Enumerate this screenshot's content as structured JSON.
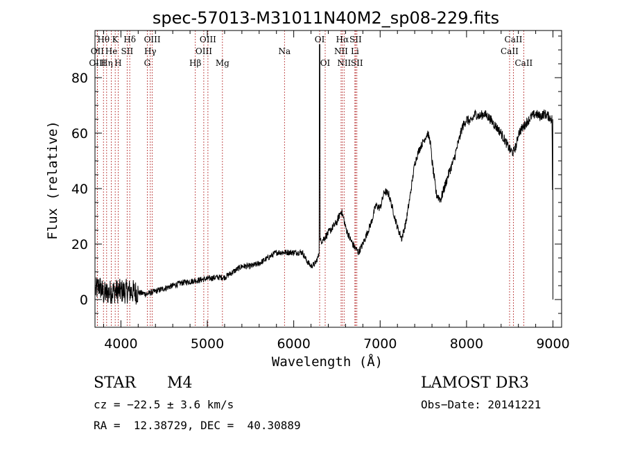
{
  "chart_data": {
    "type": "line",
    "title": "spec-57013-M31011N40M2_sp08-229.fits",
    "xlabel": "Wavelength (Å)",
    "ylabel": "Flux (relative)",
    "xlim": [
      3700,
      9100
    ],
    "ylim": [
      -10,
      97
    ],
    "xticks": [
      4000,
      5000,
      6000,
      7000,
      8000,
      9000
    ],
    "yticks": [
      0,
      20,
      40,
      60,
      80
    ],
    "spectrum_anchors": [
      [
        3700,
        3
      ],
      [
        3750,
        5
      ],
      [
        3800,
        2
      ],
      [
        3900,
        3
      ],
      [
        4000,
        3
      ],
      [
        4100,
        3
      ],
      [
        4200,
        2.5
      ],
      [
        4300,
        2
      ],
      [
        4400,
        3
      ],
      [
        4500,
        4
      ],
      [
        4600,
        5
      ],
      [
        4700,
        6
      ],
      [
        4800,
        6.5
      ],
      [
        4900,
        7
      ],
      [
        5000,
        7.5
      ],
      [
        5100,
        8
      ],
      [
        5200,
        8
      ],
      [
        5300,
        10
      ],
      [
        5400,
        12
      ],
      [
        5500,
        12
      ],
      [
        5600,
        13
      ],
      [
        5700,
        15
      ],
      [
        5800,
        17
      ],
      [
        5900,
        17
      ],
      [
        6000,
        17
      ],
      [
        6100,
        17
      ],
      [
        6150,
        14
      ],
      [
        6200,
        12
      ],
      [
        6250,
        13
      ],
      [
        6290,
        16
      ],
      [
        6300,
        20
      ],
      [
        6310,
        21
      ],
      [
        6350,
        22
      ],
      [
        6400,
        24
      ],
      [
        6450,
        26
      ],
      [
        6500,
        28
      ],
      [
        6550,
        32
      ],
      [
        6580,
        29
      ],
      [
        6600,
        26
      ],
      [
        6650,
        22
      ],
      [
        6700,
        19
      ],
      [
        6750,
        17
      ],
      [
        6800,
        20
      ],
      [
        6850,
        24
      ],
      [
        6900,
        28
      ],
      [
        6950,
        34
      ],
      [
        7000,
        33
      ],
      [
        7050,
        39
      ],
      [
        7100,
        38
      ],
      [
        7150,
        32
      ],
      [
        7200,
        26
      ],
      [
        7250,
        22
      ],
      [
        7300,
        28
      ],
      [
        7350,
        38
      ],
      [
        7400,
        49
      ],
      [
        7450,
        54
      ],
      [
        7500,
        57
      ],
      [
        7550,
        60
      ],
      [
        7580,
        57
      ],
      [
        7600,
        50
      ],
      [
        7650,
        38
      ],
      [
        7700,
        36
      ],
      [
        7750,
        41
      ],
      [
        7800,
        46
      ],
      [
        7850,
        50
      ],
      [
        7900,
        56
      ],
      [
        7950,
        62
      ],
      [
        8000,
        65
      ],
      [
        8050,
        64
      ],
      [
        8100,
        67
      ],
      [
        8150,
        66
      ],
      [
        8200,
        67
      ],
      [
        8250,
        66
      ],
      [
        8300,
        64
      ],
      [
        8350,
        62
      ],
      [
        8400,
        60
      ],
      [
        8450,
        57
      ],
      [
        8500,
        54
      ],
      [
        8540,
        53
      ],
      [
        8580,
        56
      ],
      [
        8600,
        60
      ],
      [
        8650,
        62
      ],
      [
        8700,
        64
      ],
      [
        8750,
        66
      ],
      [
        8800,
        67
      ],
      [
        8850,
        66
      ],
      [
        8900,
        67
      ],
      [
        8950,
        66
      ],
      [
        8990,
        65
      ],
      [
        9000,
        0
      ]
    ],
    "spectral_lines": [
      {
        "name": "Hθ",
        "wavelength": 3798,
        "row": 0
      },
      {
        "name": "OII",
        "wavelength": 3727,
        "row": 1
      },
      {
        "name": "OIII",
        "wavelength": 3727,
        "row": 2
      },
      {
        "name": "He",
        "wavelength": 3889,
        "row": 1
      },
      {
        "name": "Hη",
        "wavelength": 3835,
        "row": 2
      },
      {
        "name": "K",
        "wavelength": 3934,
        "row": 0
      },
      {
        "name": "H",
        "wavelength": 3968,
        "row": 2
      },
      {
        "name": "SII",
        "wavelength": 4072,
        "row": 1
      },
      {
        "name": "Hδ",
        "wavelength": 4102,
        "row": 0
      },
      {
        "name": "OIII",
        "wavelength": 4363,
        "row": 0
      },
      {
        "name": "Hγ",
        "wavelength": 4340,
        "row": 1
      },
      {
        "name": "G",
        "wavelength": 4305,
        "row": 2
      },
      {
        "name": "Hβ",
        "wavelength": 4861,
        "row": 2
      },
      {
        "name": "OIII",
        "wavelength": 5007,
        "row": 0
      },
      {
        "name": "OIII",
        "wavelength": 4959,
        "row": 1
      },
      {
        "name": "Mg",
        "wavelength": 5175,
        "row": 2
      },
      {
        "name": "Na",
        "wavelength": 5893,
        "row": 1
      },
      {
        "name": "OI",
        "wavelength": 6300,
        "row": 0
      },
      {
        "name": "OI",
        "wavelength": 6364,
        "row": 2
      },
      {
        "name": "Hα",
        "wavelength": 6563,
        "row": 0
      },
      {
        "name": "NII",
        "wavelength": 6548,
        "row": 1
      },
      {
        "name": "NII",
        "wavelength": 6583,
        "row": 2
      },
      {
        "name": "SII",
        "wavelength": 6716,
        "row": 0
      },
      {
        "name": "Li",
        "wavelength": 6708,
        "row": 1
      },
      {
        "name": "SII",
        "wavelength": 6731,
        "row": 2
      },
      {
        "name": "CaII",
        "wavelength": 8542,
        "row": 0
      },
      {
        "name": "CaII",
        "wavelength": 8498,
        "row": 1
      },
      {
        "name": "CaII",
        "wavelength": 8662,
        "row": 2
      }
    ]
  },
  "info": {
    "class_label": "STAR",
    "subclass": "M4",
    "survey": "LAMOST DR3",
    "cz": "cz = −22.5 ± 3.6 km/s",
    "obs_date": "Obs−Date: 20141221",
    "radec": "RA =  12.38729, DEC =  40.30889"
  }
}
